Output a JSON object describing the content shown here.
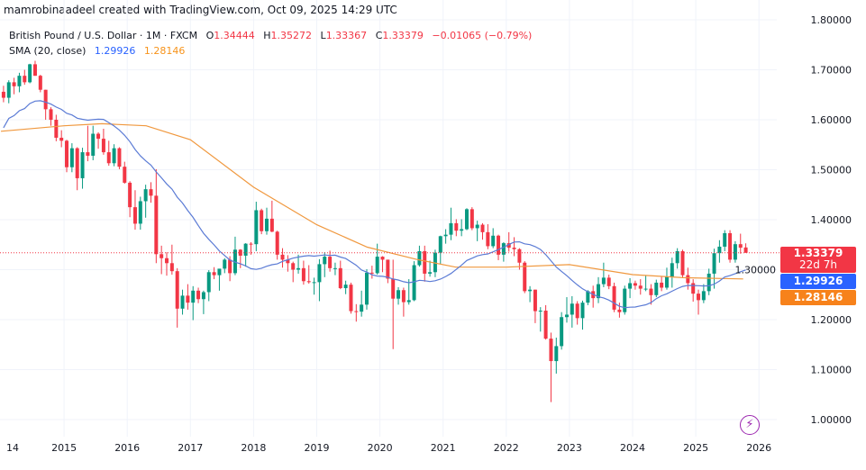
{
  "header": {
    "credit": "mamrobinaadeel created with TradingView.com, Oct 09, 2025 14:29 UTC",
    "symbol": "British Pound / U.S. Dollar · 1M · FXCM",
    "o_label": "O",
    "o": "1.34444",
    "h_label": "H",
    "h": "1.35272",
    "l_label": "L",
    "l": "1.33367",
    "c_label": "C",
    "c": "1.33379",
    "change": "−0.01065 (−0.79%)",
    "indicator": "SMA (20, close)",
    "ind_v1": "1.29926",
    "ind_v2": "1.28146"
  },
  "tags": {
    "price": "1.33379",
    "countdown": "22d 7h",
    "sma_blue": "1.29926",
    "sma_orange": "1.28146"
  },
  "icons": {
    "bolt": "lightning-icon"
  },
  "colors": {
    "up": "#089981",
    "down": "#f23645",
    "sma_blue": "#5b7bd5",
    "sma_orange": "#f0983e",
    "grid": "#f0f3fa"
  },
  "chart_data": {
    "type": "candlestick",
    "interval": "1M",
    "start": "2014-01",
    "ylim": [
      1.0,
      1.8
    ],
    "grid": true,
    "y_ticks": [
      "1.80000",
      "1.70000",
      "1.60000",
      "1.50000",
      "1.40000",
      "1.30000",
      "1.20000",
      "1.10000",
      "1.00000"
    ],
    "x_ticks": [
      "14",
      "2015",
      "2016",
      "2017",
      "2018",
      "2019",
      "2020",
      "2021",
      "2022",
      "2023",
      "2024",
      "2025",
      "2026"
    ],
    "ohlc": [
      [
        1.656,
        1.668,
        1.635,
        1.644
      ],
      [
        1.644,
        1.679,
        1.633,
        1.675
      ],
      [
        1.675,
        1.684,
        1.651,
        1.667
      ],
      [
        1.667,
        1.694,
        1.655,
        1.688
      ],
      [
        1.688,
        1.7,
        1.67,
        1.675
      ],
      [
        1.675,
        1.712,
        1.673,
        1.711
      ],
      [
        1.711,
        1.718,
        1.688,
        1.688
      ],
      [
        1.688,
        1.69,
        1.655,
        1.66
      ],
      [
        1.66,
        1.66,
        1.6,
        1.621
      ],
      [
        1.621,
        1.625,
        1.588,
        1.6
      ],
      [
        1.6,
        1.61,
        1.557,
        1.564
      ],
      [
        1.564,
        1.579,
        1.545,
        1.558
      ],
      [
        1.558,
        1.56,
        1.495,
        1.505
      ],
      [
        1.505,
        1.553,
        1.495,
        1.543
      ],
      [
        1.543,
        1.545,
        1.459,
        1.483
      ],
      [
        1.483,
        1.544,
        1.462,
        1.535
      ],
      [
        1.535,
        1.588,
        1.517,
        1.528
      ],
      [
        1.528,
        1.588,
        1.519,
        1.572
      ],
      [
        1.572,
        1.575,
        1.542,
        1.562
      ],
      [
        1.562,
        1.582,
        1.53,
        1.535
      ],
      [
        1.535,
        1.558,
        1.508,
        1.513
      ],
      [
        1.513,
        1.551,
        1.507,
        1.543
      ],
      [
        1.543,
        1.545,
        1.501,
        1.506
      ],
      [
        1.506,
        1.516,
        1.472,
        1.474
      ],
      [
        1.474,
        1.477,
        1.405,
        1.425
      ],
      [
        1.425,
        1.459,
        1.38,
        1.392
      ],
      [
        1.392,
        1.446,
        1.38,
        1.437
      ],
      [
        1.437,
        1.47,
        1.404,
        1.461
      ],
      [
        1.461,
        1.475,
        1.434,
        1.448
      ],
      [
        1.448,
        1.501,
        1.313,
        1.331
      ],
      [
        1.331,
        1.348,
        1.291,
        1.323
      ],
      [
        1.323,
        1.335,
        1.288,
        1.313
      ],
      [
        1.313,
        1.35,
        1.29,
        1.297
      ],
      [
        1.297,
        1.303,
        1.184,
        1.222
      ],
      [
        1.222,
        1.26,
        1.21,
        1.248
      ],
      [
        1.248,
        1.271,
        1.22,
        1.234
      ],
      [
        1.234,
        1.267,
        1.199,
        1.258
      ],
      [
        1.258,
        1.264,
        1.233,
        1.241
      ],
      [
        1.241,
        1.258,
        1.211,
        1.255
      ],
      [
        1.255,
        1.299,
        1.237,
        1.295
      ],
      [
        1.295,
        1.305,
        1.281,
        1.289
      ],
      [
        1.289,
        1.301,
        1.258,
        1.302
      ],
      [
        1.302,
        1.323,
        1.293,
        1.32
      ],
      [
        1.32,
        1.327,
        1.277,
        1.293
      ],
      [
        1.293,
        1.366,
        1.289,
        1.34
      ],
      [
        1.34,
        1.341,
        1.303,
        1.328
      ],
      [
        1.328,
        1.353,
        1.306,
        1.352
      ],
      [
        1.352,
        1.355,
        1.33,
        1.351
      ],
      [
        1.351,
        1.436,
        1.337,
        1.419
      ],
      [
        1.419,
        1.422,
        1.371,
        1.377
      ],
      [
        1.377,
        1.424,
        1.37,
        1.402
      ],
      [
        1.402,
        1.438,
        1.375,
        1.376
      ],
      [
        1.376,
        1.378,
        1.32,
        1.33
      ],
      [
        1.33,
        1.343,
        1.304,
        1.32
      ],
      [
        1.32,
        1.329,
        1.296,
        1.313
      ],
      [
        1.313,
        1.316,
        1.275,
        1.3
      ],
      [
        1.3,
        1.33,
        1.292,
        1.303
      ],
      [
        1.303,
        1.318,
        1.27,
        1.277
      ],
      [
        1.277,
        1.309,
        1.272,
        1.275
      ],
      [
        1.275,
        1.284,
        1.25,
        1.275
      ],
      [
        1.275,
        1.321,
        1.237,
        1.311
      ],
      [
        1.311,
        1.335,
        1.285,
        1.326
      ],
      [
        1.326,
        1.338,
        1.296,
        1.303
      ],
      [
        1.303,
        1.314,
        1.289,
        1.303
      ],
      [
        1.303,
        1.318,
        1.261,
        1.263
      ],
      [
        1.263,
        1.278,
        1.251,
        1.27
      ],
      [
        1.27,
        1.274,
        1.212,
        1.217
      ],
      [
        1.217,
        1.231,
        1.196,
        1.216
      ],
      [
        1.216,
        1.258,
        1.206,
        1.23
      ],
      [
        1.23,
        1.301,
        1.22,
        1.294
      ],
      [
        1.294,
        1.308,
        1.282,
        1.293
      ],
      [
        1.293,
        1.352,
        1.29,
        1.326
      ],
      [
        1.326,
        1.327,
        1.295,
        1.32
      ],
      [
        1.32,
        1.32,
        1.273,
        1.282
      ],
      [
        1.282,
        1.32,
        1.141,
        1.242
      ],
      [
        1.242,
        1.265,
        1.23,
        1.259
      ],
      [
        1.259,
        1.264,
        1.206,
        1.235
      ],
      [
        1.235,
        1.281,
        1.23,
        1.239
      ],
      [
        1.239,
        1.317,
        1.237,
        1.309
      ],
      [
        1.309,
        1.348,
        1.306,
        1.337
      ],
      [
        1.337,
        1.348,
        1.276,
        1.292
      ],
      [
        1.292,
        1.318,
        1.286,
        1.295
      ],
      [
        1.295,
        1.34,
        1.285,
        1.334
      ],
      [
        1.334,
        1.368,
        1.311,
        1.367
      ],
      [
        1.367,
        1.381,
        1.352,
        1.37
      ],
      [
        1.37,
        1.424,
        1.359,
        1.393
      ],
      [
        1.393,
        1.401,
        1.367,
        1.378
      ],
      [
        1.378,
        1.401,
        1.367,
        1.381
      ],
      [
        1.381,
        1.423,
        1.379,
        1.421
      ],
      [
        1.421,
        1.425,
        1.379,
        1.383
      ],
      [
        1.383,
        1.398,
        1.357,
        1.39
      ],
      [
        1.39,
        1.393,
        1.36,
        1.375
      ],
      [
        1.375,
        1.391,
        1.341,
        1.347
      ],
      [
        1.347,
        1.383,
        1.343,
        1.368
      ],
      [
        1.368,
        1.37,
        1.319,
        1.33
      ],
      [
        1.33,
        1.355,
        1.316,
        1.353
      ],
      [
        1.353,
        1.375,
        1.336,
        1.344
      ],
      [
        1.344,
        1.365,
        1.327,
        1.341
      ],
      [
        1.341,
        1.343,
        1.3,
        1.314
      ],
      [
        1.314,
        1.317,
        1.253,
        1.257
      ],
      [
        1.257,
        1.267,
        1.235,
        1.26
      ],
      [
        1.26,
        1.26,
        1.193,
        1.217
      ],
      [
        1.217,
        1.225,
        1.176,
        1.218
      ],
      [
        1.218,
        1.229,
        1.16,
        1.162
      ],
      [
        1.162,
        1.174,
        1.035,
        1.117
      ],
      [
        1.117,
        1.164,
        1.092,
        1.147
      ],
      [
        1.147,
        1.215,
        1.14,
        1.205
      ],
      [
        1.205,
        1.245,
        1.194,
        1.21
      ],
      [
        1.21,
        1.247,
        1.184,
        1.232
      ],
      [
        1.232,
        1.237,
        1.19,
        1.203
      ],
      [
        1.203,
        1.238,
        1.18,
        1.234
      ],
      [
        1.234,
        1.259,
        1.229,
        1.257
      ],
      [
        1.257,
        1.268,
        1.224,
        1.243
      ],
      [
        1.243,
        1.285,
        1.233,
        1.271
      ],
      [
        1.271,
        1.314,
        1.265,
        1.284
      ],
      [
        1.284,
        1.29,
        1.261,
        1.267
      ],
      [
        1.267,
        1.274,
        1.215,
        1.22
      ],
      [
        1.22,
        1.234,
        1.204,
        1.215
      ],
      [
        1.215,
        1.268,
        1.21,
        1.262
      ],
      [
        1.262,
        1.283,
        1.243,
        1.273
      ],
      [
        1.273,
        1.278,
        1.26,
        1.268
      ],
      [
        1.268,
        1.281,
        1.25,
        1.262
      ],
      [
        1.262,
        1.289,
        1.257,
        1.262
      ],
      [
        1.262,
        1.271,
        1.23,
        1.249
      ],
      [
        1.249,
        1.28,
        1.245,
        1.274
      ],
      [
        1.274,
        1.286,
        1.257,
        1.264
      ],
      [
        1.264,
        1.304,
        1.26,
        1.286
      ],
      [
        1.286,
        1.324,
        1.264,
        1.313
      ],
      [
        1.313,
        1.343,
        1.302,
        1.337
      ],
      [
        1.337,
        1.34,
        1.284,
        1.289
      ],
      [
        1.289,
        1.304,
        1.26,
        1.273
      ],
      [
        1.273,
        1.281,
        1.236,
        1.252
      ],
      [
        1.252,
        1.26,
        1.21,
        1.239
      ],
      [
        1.239,
        1.271,
        1.233,
        1.257
      ],
      [
        1.257,
        1.302,
        1.249,
        1.292
      ],
      [
        1.292,
        1.342,
        1.262,
        1.333
      ],
      [
        1.333,
        1.359,
        1.314,
        1.346
      ],
      [
        1.346,
        1.379,
        1.337,
        1.373
      ],
      [
        1.373,
        1.379,
        1.314,
        1.32
      ],
      [
        1.32,
        1.357,
        1.314,
        1.351
      ],
      [
        1.351,
        1.372,
        1.332,
        1.344
      ],
      [
        1.34444,
        1.35272,
        1.33367,
        1.33379
      ]
    ],
    "sma_orange_points": [
      [
        2014.0,
        1.577
      ],
      [
        2015.0,
        1.588
      ],
      [
        2015.6,
        1.592
      ],
      [
        2016.3,
        1.588
      ],
      [
        2017.0,
        1.56
      ],
      [
        2018.0,
        1.465
      ],
      [
        2019.0,
        1.39
      ],
      [
        2019.8,
        1.345
      ],
      [
        2020.6,
        1.32
      ],
      [
        2021.2,
        1.305
      ],
      [
        2022.0,
        1.305
      ],
      [
        2023.0,
        1.31
      ],
      [
        2024.0,
        1.29
      ],
      [
        2024.8,
        1.284
      ],
      [
        2025.75,
        1.2815
      ]
    ],
    "last_price": 1.33379
  }
}
